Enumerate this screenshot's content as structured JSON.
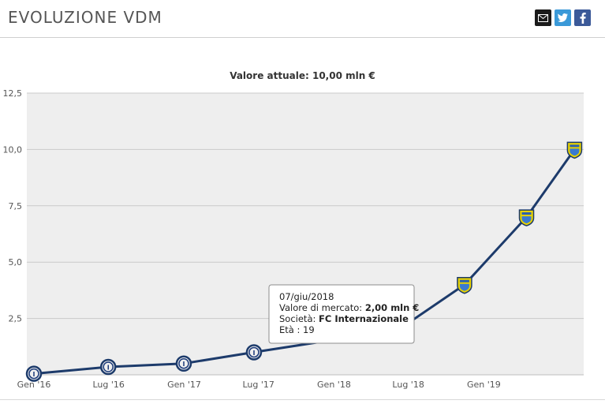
{
  "header": {
    "title": "EVOLUZIONE VDM",
    "share": {
      "mail_icon": "mail-icon",
      "twitter_icon": "twitter-icon",
      "facebook_icon": "facebook-icon"
    }
  },
  "subtitle": "Valore attuale: 10,00 mln €",
  "tooltip": {
    "date": "07/giu/2018",
    "value_label": "Valore di mercato:",
    "value": "2,00 mln €",
    "club_label": "Società:",
    "club": "FC Internazionale",
    "age_label": "Età :",
    "age": "19"
  },
  "colors": {
    "line": "#1d3b6b",
    "plot_bg": "#eeeeee",
    "grid": "#ffffff",
    "inter_badge": "#1b3a7a",
    "frosinone_badge": "#e8d200"
  },
  "chart_data": {
    "type": "line",
    "title": "Valore attuale: 10,00 mln €",
    "xlabel": "",
    "ylabel": "",
    "ylim": [
      0,
      12.5
    ],
    "y_ticks": [
      "12,5",
      "10,0",
      "7,5",
      "5,0",
      "2,5"
    ],
    "x_ticks": [
      "Gen '16",
      "Lug '16",
      "Gen '17",
      "Lug '17",
      "Gen '18",
      "Lug '18",
      "Gen '19"
    ],
    "grid": true,
    "series": [
      {
        "points": [
          {
            "x": "2016-01-01",
            "y": 0.05,
            "club": "FC Internazionale"
          },
          {
            "x": "2016-06-30",
            "y": 0.35,
            "club": "FC Internazionale"
          },
          {
            "x": "2016-12-31",
            "y": 0.5,
            "club": "FC Internazionale"
          },
          {
            "x": "2017-06-20",
            "y": 1.0,
            "club": "FC Internazionale"
          },
          {
            "x": "2018-06-07",
            "y": 2.0,
            "club": "FC Internazionale"
          },
          {
            "x": "2018-11-15",
            "y": 4.0,
            "club": "Frosinone"
          },
          {
            "x": "2019-04-15",
            "y": 7.0,
            "club": "Frosinone"
          },
          {
            "x": "2019-08-10",
            "y": 10.0,
            "club": "Frosinone"
          }
        ]
      }
    ]
  }
}
